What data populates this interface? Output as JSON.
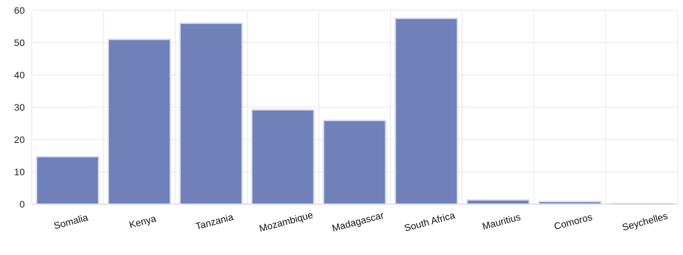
{
  "chart_data": {
    "type": "bar",
    "title": "",
    "xlabel": "",
    "ylabel": "",
    "categories": [
      "Somalia",
      "Kenya",
      "Tanzania",
      "Mozambique",
      "Madagascar",
      "South Africa",
      "Mauritius",
      "Comoros",
      "Seychelles"
    ],
    "values": [
      14.7,
      51.0,
      56.0,
      29.2,
      25.9,
      57.5,
      1.3,
      0.8,
      0.1
    ],
    "ylim": [
      0,
      60
    ],
    "yticks": [
      0,
      10,
      20,
      30,
      40,
      50,
      60
    ],
    "grid": true,
    "legend": "none",
    "bar_color": "#7080b8"
  }
}
